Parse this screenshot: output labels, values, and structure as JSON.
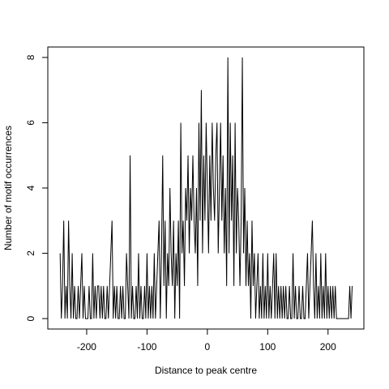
{
  "chart_data": {
    "type": "line",
    "xlabel": "Distance to peak centre",
    "ylabel": "Number of motif occurrences",
    "x": [
      -244,
      -242,
      -240,
      -238,
      -236,
      -234,
      -232,
      -230,
      -228,
      -226,
      -224,
      -222,
      -220,
      -218,
      -216,
      -214,
      -212,
      -210,
      -208,
      -206,
      -204,
      -202,
      -200,
      -198,
      -196,
      -194,
      -192,
      -190,
      -188,
      -186,
      -184,
      -182,
      -180,
      -178,
      -176,
      -174,
      -172,
      -170,
      -168,
      -166,
      -164,
      -162,
      -160,
      -158,
      -156,
      -154,
      -152,
      -150,
      -148,
      -146,
      -144,
      -142,
      -140,
      -138,
      -136,
      -134,
      -132,
      -130,
      -128,
      -126,
      -124,
      -122,
      -120,
      -118,
      -116,
      -114,
      -112,
      -110,
      -108,
      -106,
      -104,
      -102,
      -100,
      -98,
      -96,
      -94,
      -92,
      -90,
      -88,
      -86,
      -84,
      -82,
      -80,
      -78,
      -76,
      -74,
      -72,
      -70,
      -68,
      -66,
      -64,
      -62,
      -60,
      -58,
      -56,
      -54,
      -52,
      -50,
      -48,
      -46,
      -44,
      -42,
      -40,
      -38,
      -36,
      -34,
      -32,
      -30,
      -28,
      -26,
      -24,
      -22,
      -20,
      -18,
      -16,
      -14,
      -12,
      -10,
      -8,
      -6,
      -4,
      -2,
      0,
      2,
      4,
      6,
      8,
      10,
      12,
      14,
      16,
      18,
      20,
      22,
      24,
      26,
      28,
      30,
      32,
      34,
      36,
      38,
      40,
      42,
      44,
      46,
      48,
      50,
      52,
      54,
      56,
      58,
      60,
      62,
      64,
      66,
      68,
      70,
      72,
      74,
      76,
      78,
      80,
      82,
      84,
      86,
      88,
      90,
      92,
      94,
      96,
      98,
      100,
      102,
      104,
      106,
      108,
      110,
      112,
      114,
      116,
      118,
      120,
      122,
      124,
      126,
      128,
      130,
      132,
      134,
      136,
      138,
      140,
      142,
      144,
      146,
      148,
      150,
      152,
      154,
      156,
      158,
      160,
      162,
      164,
      166,
      168,
      170,
      172,
      174,
      176,
      178,
      180,
      182,
      184,
      186,
      188,
      190,
      192,
      194,
      196,
      198,
      200,
      202,
      204,
      206,
      208,
      210,
      212,
      214,
      216,
      218,
      220,
      222,
      224,
      226,
      228,
      230,
      232,
      234,
      236,
      238,
      240
    ],
    "series": [
      {
        "color": "#000000",
        "values": [
          2,
          0,
          1,
          3,
          0,
          1,
          0,
          3,
          1,
          0,
          2,
          0,
          1,
          0,
          0,
          1,
          0,
          1,
          2,
          0,
          1,
          0,
          0,
          0,
          1,
          0,
          0,
          2,
          0,
          1,
          0,
          1,
          1,
          0,
          1,
          0,
          1,
          0,
          0,
          1,
          0,
          1,
          2,
          3,
          0,
          1,
          0,
          1,
          0,
          0,
          1,
          0,
          1,
          0,
          0,
          2,
          1,
          0,
          5,
          0,
          1,
          0,
          0,
          1,
          0,
          2,
          0,
          1,
          0,
          0,
          1,
          0,
          2,
          0,
          1,
          0,
          1,
          0,
          2,
          0,
          1,
          2,
          3,
          0,
          2,
          5,
          1,
          3,
          0,
          2,
          1,
          4,
          2,
          1,
          3,
          0,
          2,
          1,
          3,
          0,
          6,
          2,
          3,
          1,
          4,
          3,
          5,
          2,
          4,
          3,
          5,
          3,
          2,
          4,
          1,
          6,
          3,
          7,
          2,
          5,
          3,
          6,
          4,
          2,
          5,
          3,
          6,
          4,
          3,
          5,
          6,
          2,
          4,
          6,
          3,
          5,
          2,
          4,
          1,
          8,
          2,
          6,
          3,
          5,
          1,
          6,
          2,
          4,
          3,
          1,
          3,
          8,
          2,
          4,
          1,
          3,
          1,
          2,
          0,
          3,
          1,
          2,
          0,
          1,
          2,
          0,
          1,
          0,
          2,
          0,
          1,
          0,
          2,
          0,
          1,
          0,
          1,
          2,
          0,
          2,
          0,
          1,
          0,
          1,
          0,
          1,
          0,
          1,
          0,
          0,
          1,
          0,
          0,
          2,
          0,
          1,
          0,
          0,
          1,
          0,
          0,
          1,
          0,
          0,
          1,
          2,
          0,
          1,
          2,
          3,
          1,
          0,
          2,
          0,
          1,
          0,
          2,
          0,
          1,
          0,
          2,
          0,
          1,
          0,
          1,
          0,
          1,
          0,
          1,
          0,
          0,
          0,
          0,
          0,
          0,
          0,
          0,
          0,
          0,
          0,
          1,
          0,
          1
        ]
      }
    ],
    "xlim": [
      -264.4,
      259.4
    ],
    "ylim": [
      -0.32,
      8.32
    ],
    "xticks": [
      -200,
      -100,
      0,
      100,
      200
    ],
    "yticks": [
      0,
      2,
      4,
      6,
      8
    ]
  }
}
